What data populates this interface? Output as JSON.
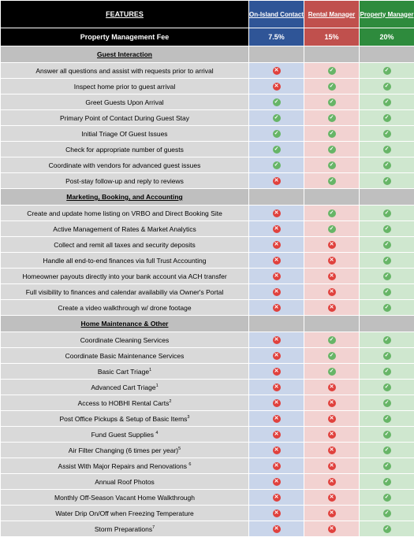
{
  "header": {
    "features": "FEATURES",
    "plans": [
      "On-Island Contact",
      "Rental Manager",
      "Property Manager"
    ],
    "fee_label": "Property Management Fee",
    "fees": [
      "7.5%",
      "15%",
      "20%"
    ]
  },
  "icons": {
    "yes": "check-icon",
    "no": "x-icon",
    "yes_color": "#67b567",
    "no_color": "#e0413d"
  },
  "sections": [
    {
      "title": "Guest Interaction",
      "rows": [
        {
          "label": "Answer all questions and assist with requests prior to arrival",
          "note": "",
          "values": [
            "no",
            "yes",
            "yes"
          ]
        },
        {
          "label": "Inspect home prior to guest arrival",
          "note": "",
          "values": [
            "no",
            "yes",
            "yes"
          ]
        },
        {
          "label": "Greet Guests Upon Arrival",
          "note": "",
          "values": [
            "yes",
            "yes",
            "yes"
          ]
        },
        {
          "label": "Primary Point of Contact During Guest Stay",
          "note": "",
          "values": [
            "yes",
            "yes",
            "yes"
          ]
        },
        {
          "label": "Initial Triage Of Guest Issues",
          "note": "",
          "values": [
            "yes",
            "yes",
            "yes"
          ]
        },
        {
          "label": "Check for appropriate number of guests",
          "note": "",
          "values": [
            "yes",
            "yes",
            "yes"
          ]
        },
        {
          "label": "Coordinate with vendors for advanced guest issues",
          "note": "",
          "values": [
            "yes",
            "yes",
            "yes"
          ]
        },
        {
          "label": "Post-stay follow-up and reply to reviews",
          "note": "",
          "values": [
            "no",
            "yes",
            "yes"
          ]
        }
      ]
    },
    {
      "title": "Marketing, Booking, and Accounting",
      "rows": [
        {
          "label": "Create and update home listing on VRBO and Direct Booking Site",
          "note": "",
          "values": [
            "no",
            "yes",
            "yes"
          ]
        },
        {
          "label": "Active Management of Rates & Market Analytics",
          "note": "",
          "values": [
            "no",
            "yes",
            "yes"
          ]
        },
        {
          "label": "Collect and remit all taxes and security deposits",
          "note": "",
          "values": [
            "no",
            "no",
            "yes"
          ]
        },
        {
          "label": "Handle all end-to-end finances via full Trust Accounting",
          "note": "",
          "values": [
            "no",
            "no",
            "yes"
          ]
        },
        {
          "label": "Homeowner payouts directly into your bank account via ACH transfer",
          "note": "",
          "values": [
            "no",
            "no",
            "yes"
          ]
        },
        {
          "label": "Full visibility to finances and calendar availabiliy via Owner's Portal",
          "note": "",
          "values": [
            "no",
            "no",
            "yes"
          ]
        },
        {
          "label": "Create a video walkthrough w/ drone footage",
          "note": "",
          "values": [
            "no",
            "no",
            "yes"
          ]
        }
      ]
    },
    {
      "title": "Home Maintenance & Other",
      "rows": [
        {
          "label": "Coordinate Cleaning Services",
          "note": "",
          "values": [
            "no",
            "yes",
            "yes"
          ]
        },
        {
          "label": "Coordinate Basic Maintenance Services",
          "note": "",
          "values": [
            "no",
            "yes",
            "yes"
          ]
        },
        {
          "label": "Basic Cart Triage",
          "note": "1",
          "values": [
            "no",
            "yes",
            "yes"
          ]
        },
        {
          "label": "Advanced Cart Triage",
          "note": "1",
          "values": [
            "no",
            "no",
            "yes"
          ]
        },
        {
          "label": "Access to HOBHI Rental Carts",
          "note": "2",
          "values": [
            "no",
            "no",
            "yes"
          ]
        },
        {
          "label": "Post Office Pickups & Setup of Basic Items",
          "note": "3",
          "values": [
            "no",
            "no",
            "yes"
          ]
        },
        {
          "label": "Fund Guest Supplies ",
          "note": "4",
          "values": [
            "no",
            "no",
            "yes"
          ]
        },
        {
          "label": "Air Filter Changing (6 times per year)",
          "note": "5",
          "values": [
            "no",
            "no",
            "yes"
          ]
        },
        {
          "label": "Assist With Major Repairs and Renovations ",
          "note": "6",
          "values": [
            "no",
            "no",
            "yes"
          ]
        },
        {
          "label": "Annual Roof Photos",
          "note": "",
          "values": [
            "no",
            "no",
            "yes"
          ]
        },
        {
          "label": "Monthly Off-Season Vacant Home Walkthrough",
          "note": "",
          "values": [
            "no",
            "no",
            "yes"
          ]
        },
        {
          "label": "Water Drip On/Off when Freezing Temperature",
          "note": "",
          "values": [
            "no",
            "no",
            "yes"
          ]
        },
        {
          "label": "Storm Preparations",
          "note": "7",
          "values": [
            "no",
            "no",
            "yes"
          ]
        }
      ]
    }
  ]
}
